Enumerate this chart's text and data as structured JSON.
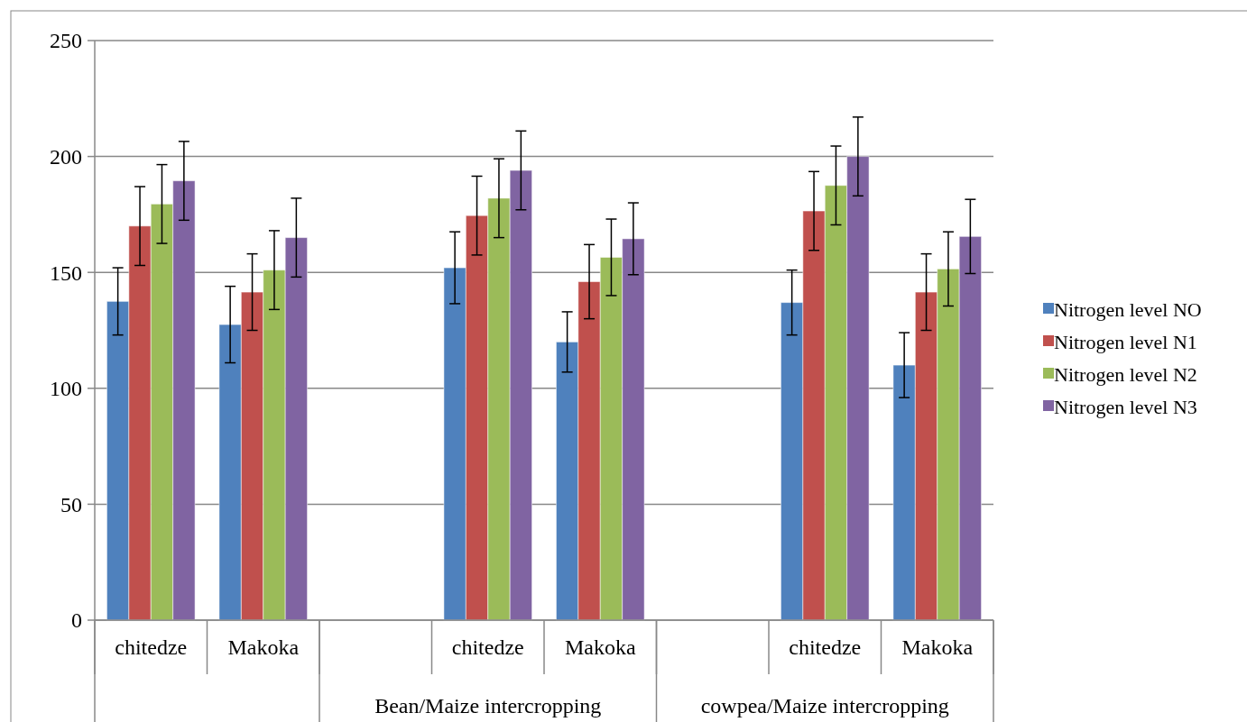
{
  "chart_data": {
    "type": "bar",
    "categories": [
      "chitedze",
      "Makoka",
      null,
      "chitedze",
      "Makoka",
      null,
      "chitedze",
      "Makoka"
    ],
    "series": [
      {
        "name": "Nitrogen level NO",
        "color": "#4f81bd",
        "values": [
          137.5,
          127.5,
          null,
          152,
          120,
          null,
          137,
          110
        ],
        "errors": [
          14.5,
          16.5,
          null,
          15.5,
          13,
          null,
          14,
          14
        ]
      },
      {
        "name": "Nitrogen level N1",
        "color": "#c0504d",
        "values": [
          170,
          141.5,
          null,
          174.5,
          146,
          null,
          176.5,
          141.5
        ],
        "errors": [
          17,
          16.5,
          null,
          17,
          16,
          null,
          17,
          16.5
        ]
      },
      {
        "name": "Nitrogen level N2",
        "color": "#9bbb59",
        "values": [
          179.5,
          151,
          null,
          182,
          156.5,
          null,
          187.5,
          151.5
        ],
        "errors": [
          17,
          17,
          null,
          17,
          16.5,
          null,
          17,
          16
        ]
      },
      {
        "name": "Nitrogen level N3",
        "color": "#8064a2",
        "values": [
          189.5,
          165,
          null,
          194,
          164.5,
          null,
          200,
          165.5
        ],
        "errors": [
          17,
          17,
          null,
          17,
          15.5,
          null,
          17,
          16
        ]
      }
    ],
    "annotations": [
      "Bean/Maize intercropping",
      "cowpea/Maize intercropping"
    ],
    "ylim": [
      0,
      250
    ],
    "yticks": [
      0,
      50,
      100,
      150,
      200,
      250
    ],
    "grid": "y",
    "legend": "right"
  }
}
